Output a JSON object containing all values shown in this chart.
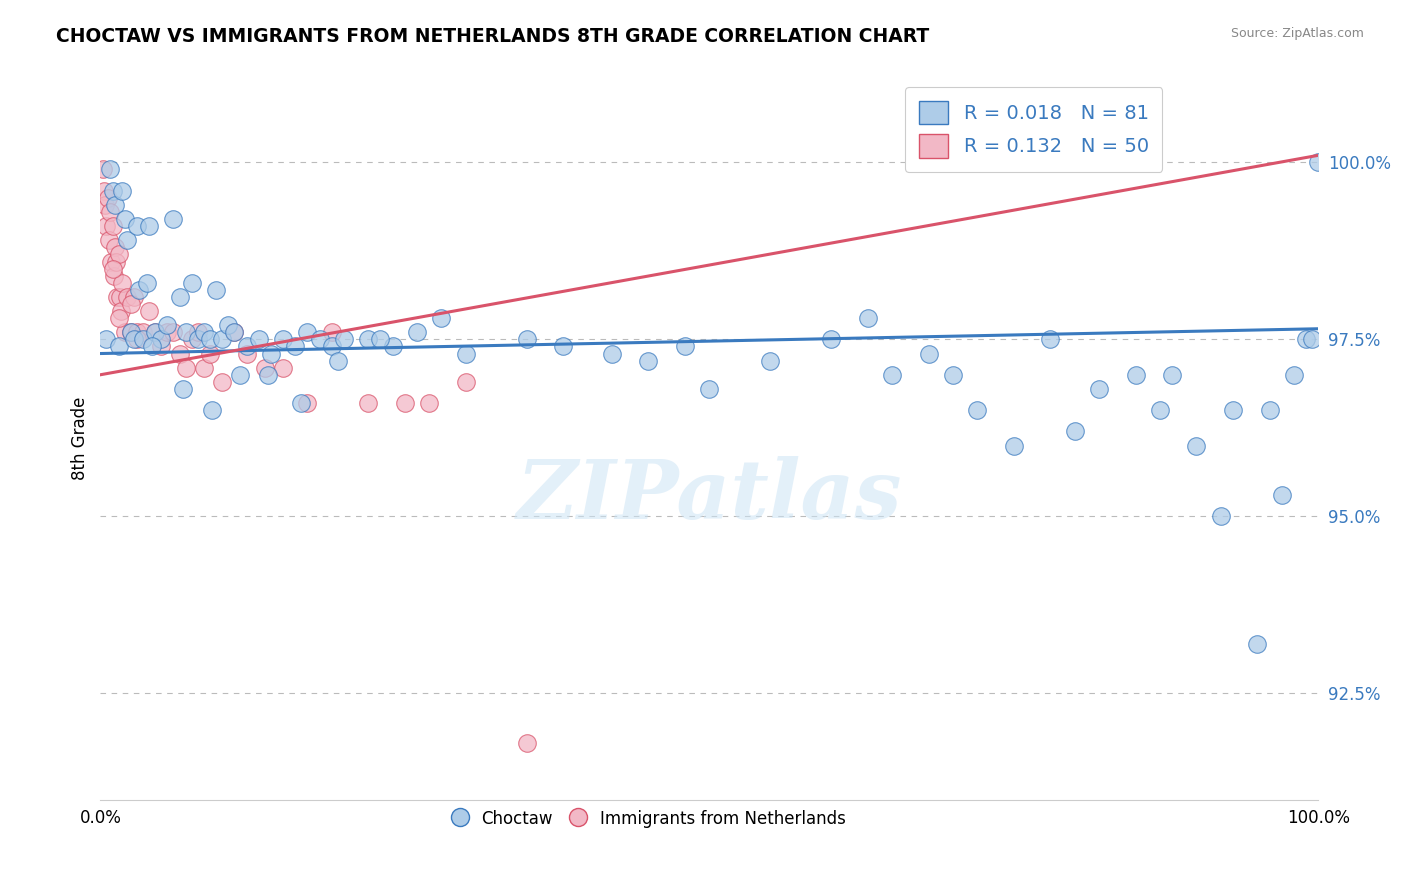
{
  "title": "CHOCTAW VS IMMIGRANTS FROM NETHERLANDS 8TH GRADE CORRELATION CHART",
  "source": "Source: ZipAtlas.com",
  "ylabel": "8th Grade",
  "xlim": [
    0.0,
    100.0
  ],
  "ylim": [
    91.0,
    101.2
  ],
  "blue_R": 0.018,
  "blue_N": 81,
  "pink_R": 0.132,
  "pink_N": 50,
  "blue_color": "#aecce8",
  "pink_color": "#f2b8c6",
  "blue_line_color": "#3a7abf",
  "pink_line_color": "#d9536a",
  "legend_blue_label": "Choctaw",
  "legend_pink_label": "Immigrants from Netherlands",
  "watermark": "ZIPatlas",
  "blue_line_x0": 0.0,
  "blue_line_y0": 97.3,
  "blue_line_x1": 100.0,
  "blue_line_y1": 97.65,
  "pink_line_x0": 0.0,
  "pink_line_y0": 97.0,
  "pink_line_x1": 100.0,
  "pink_line_y1": 100.1,
  "yticks": [
    92.5,
    95.0,
    97.5,
    100.0
  ],
  "ytick_labels": [
    "92.5%",
    "95.0%",
    "97.5%",
    "100.0%"
  ],
  "blue_scatter_x": [
    0.5,
    0.8,
    1.0,
    1.2,
    1.5,
    1.8,
    2.0,
    2.2,
    2.5,
    2.8,
    3.0,
    3.2,
    3.5,
    3.8,
    4.0,
    4.5,
    5.0,
    5.5,
    6.0,
    6.5,
    7.0,
    7.5,
    8.0,
    8.5,
    9.0,
    9.5,
    10.0,
    10.5,
    11.0,
    12.0,
    13.0,
    14.0,
    15.0,
    16.0,
    17.0,
    18.0,
    19.0,
    20.0,
    22.0,
    24.0,
    26.0,
    28.0,
    30.0,
    35.0,
    38.0,
    42.0,
    45.0,
    48.0,
    50.0,
    55.0,
    60.0,
    63.0,
    65.0,
    68.0,
    70.0,
    72.0,
    75.0,
    78.0,
    80.0,
    82.0,
    85.0,
    87.0,
    88.0,
    90.0,
    92.0,
    93.0,
    95.0,
    96.0,
    97.0,
    98.0,
    99.0,
    99.5,
    100.0,
    4.2,
    6.8,
    9.2,
    11.5,
    13.8,
    16.5,
    19.5,
    23.0
  ],
  "blue_scatter_y": [
    97.5,
    99.9,
    99.6,
    99.4,
    97.4,
    99.6,
    99.2,
    98.9,
    97.6,
    97.5,
    99.1,
    98.2,
    97.5,
    98.3,
    99.1,
    97.6,
    97.5,
    97.7,
    99.2,
    98.1,
    97.6,
    98.3,
    97.5,
    97.6,
    97.5,
    98.2,
    97.5,
    97.7,
    97.6,
    97.4,
    97.5,
    97.3,
    97.5,
    97.4,
    97.6,
    97.5,
    97.4,
    97.5,
    97.5,
    97.4,
    97.6,
    97.8,
    97.3,
    97.5,
    97.4,
    97.3,
    97.2,
    97.4,
    96.8,
    97.2,
    97.5,
    97.8,
    97.0,
    97.3,
    97.0,
    96.5,
    96.0,
    97.5,
    96.2,
    96.8,
    97.0,
    96.5,
    97.0,
    96.0,
    95.0,
    96.5,
    93.2,
    96.5,
    95.3,
    97.0,
    97.5,
    97.5,
    100.0,
    97.4,
    96.8,
    96.5,
    97.0,
    97.0,
    96.6,
    97.2,
    97.5
  ],
  "pink_scatter_x": [
    0.2,
    0.3,
    0.4,
    0.5,
    0.6,
    0.7,
    0.8,
    0.9,
    1.0,
    1.1,
    1.2,
    1.3,
    1.4,
    1.5,
    1.6,
    1.7,
    1.8,
    2.0,
    2.2,
    2.5,
    2.8,
    3.0,
    3.5,
    4.0,
    4.5,
    5.0,
    5.5,
    6.0,
    6.5,
    7.0,
    7.5,
    8.0,
    8.5,
    9.0,
    10.0,
    11.0,
    12.0,
    13.5,
    15.0,
    17.0,
    19.0,
    22.0,
    25.0,
    27.0,
    30.0,
    35.0,
    1.0,
    1.5,
    2.5,
    3.0
  ],
  "pink_scatter_y": [
    99.9,
    99.6,
    99.4,
    99.1,
    99.5,
    98.9,
    99.3,
    98.6,
    99.1,
    98.4,
    98.8,
    98.6,
    98.1,
    98.7,
    98.1,
    97.9,
    98.3,
    97.6,
    98.1,
    97.6,
    98.1,
    97.6,
    97.6,
    97.9,
    97.6,
    97.4,
    97.6,
    97.6,
    97.3,
    97.1,
    97.5,
    97.6,
    97.1,
    97.3,
    96.9,
    97.6,
    97.3,
    97.1,
    97.1,
    96.6,
    97.6,
    96.6,
    96.6,
    96.6,
    96.9,
    91.8,
    98.5,
    97.8,
    98.0,
    97.5
  ]
}
